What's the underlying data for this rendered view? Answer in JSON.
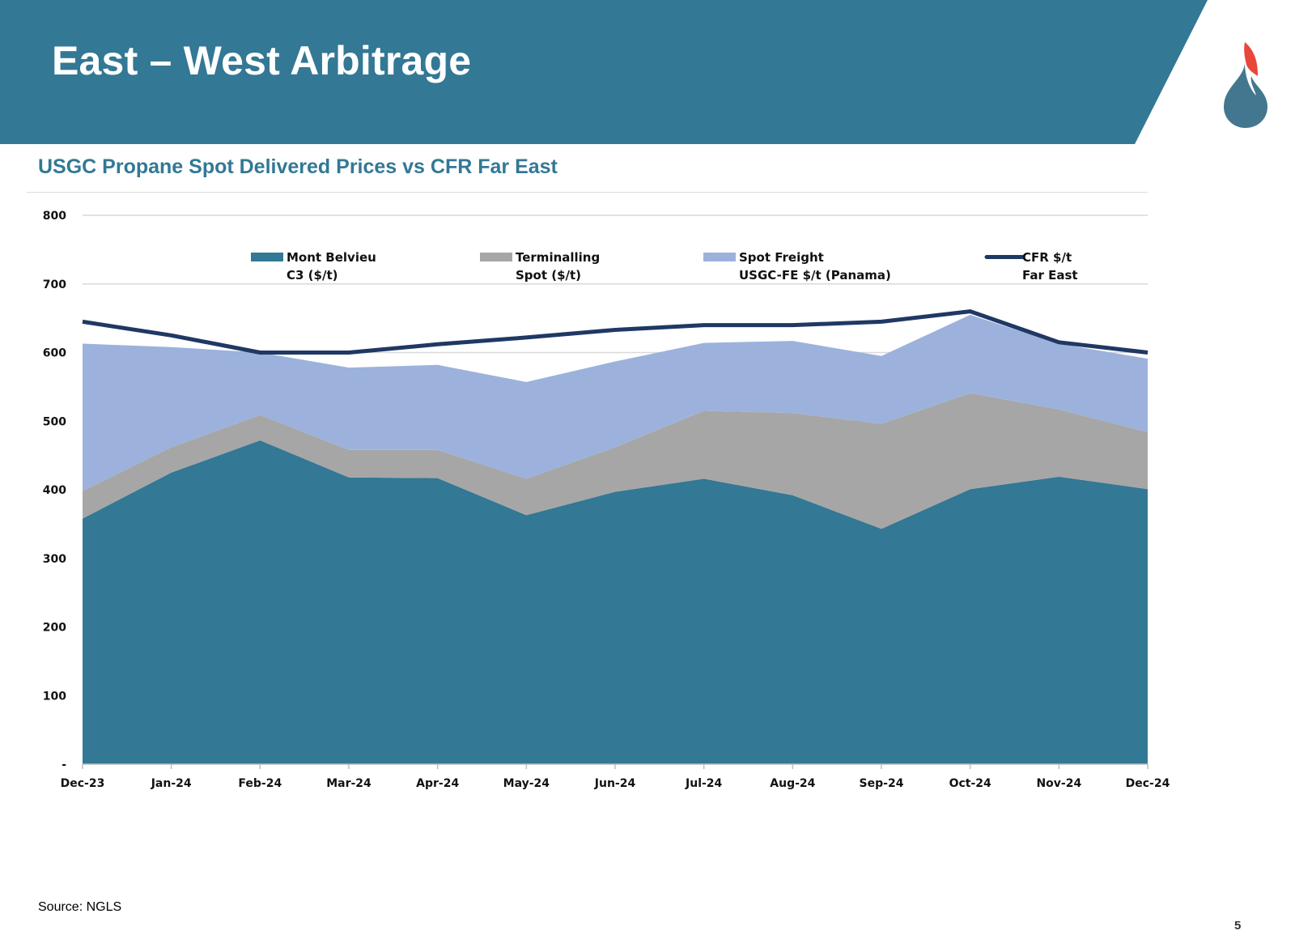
{
  "page": {
    "title": "East – West Arbitrage",
    "source": "Source: NGLS",
    "page_number": "5",
    "colors": {
      "banner": "#337895",
      "banner_accent": "#b9d3df",
      "chart_title": "#337895",
      "logo_flame": "#e8473a",
      "logo_drop": "#43778f"
    }
  },
  "chart_data": {
    "type": "area",
    "title": "USGC Propane Spot Delivered Prices vs CFR Far East",
    "xlabel": "",
    "ylabel": "",
    "ylim": [
      0,
      800
    ],
    "y_ticks": [
      {
        "value": 0,
        "label": "-"
      },
      {
        "value": 100,
        "label": "100"
      },
      {
        "value": 200,
        "label": "200"
      },
      {
        "value": 300,
        "label": "300"
      },
      {
        "value": 400,
        "label": "400"
      },
      {
        "value": 500,
        "label": "500"
      },
      {
        "value": 600,
        "label": "600"
      },
      {
        "value": 700,
        "label": "700"
      },
      {
        "value": 800,
        "label": "800"
      }
    ],
    "grid": true,
    "legend_position": "top",
    "categories": [
      "Dec-23",
      "Jan-24",
      "Feb-24",
      "Mar-24",
      "Apr-24",
      "May-24",
      "Jun-24",
      "Jul-24",
      "Aug-24",
      "Sep-24",
      "Oct-24",
      "Nov-24",
      "Dec-24"
    ],
    "stacked": true,
    "series": [
      {
        "name": "Mont Belvieu C3 ($/t)",
        "legend_line1": "Mont Belvieu",
        "legend_line2": "C3 ($/t)",
        "kind": "area",
        "color": "#337895",
        "values": [
          358,
          425,
          472,
          418,
          417,
          363,
          397,
          416,
          392,
          343,
          401,
          419,
          401
        ]
      },
      {
        "name": "Terminalling Spot ($/t)",
        "legend_line1": "Terminalling",
        "legend_line2": "Spot ($/t)",
        "kind": "area",
        "color": "#a6a6a6",
        "values": [
          40,
          37,
          37,
          40,
          41,
          53,
          65,
          99,
          120,
          153,
          140,
          98,
          83
        ]
      },
      {
        "name": "Spot Freight USGC-FE $/t (Panama)",
        "legend_line1": "Spot Freight",
        "legend_line2": "USGC-FE $/t (Panama)",
        "kind": "area",
        "color": "#9cb2dc",
        "values": [
          215,
          146,
          91,
          120,
          124,
          141,
          125,
          99,
          105,
          99,
          114,
          96,
          107
        ]
      },
      {
        "name": "CFR $/t Far East",
        "legend_line1": "CFR $/t",
        "legend_line2": "Far East",
        "kind": "line",
        "color": "#1f3864",
        "values": [
          645,
          625,
          600,
          600,
          612,
          622,
          633,
          640,
          640,
          645,
          660,
          615,
          600
        ]
      }
    ]
  }
}
